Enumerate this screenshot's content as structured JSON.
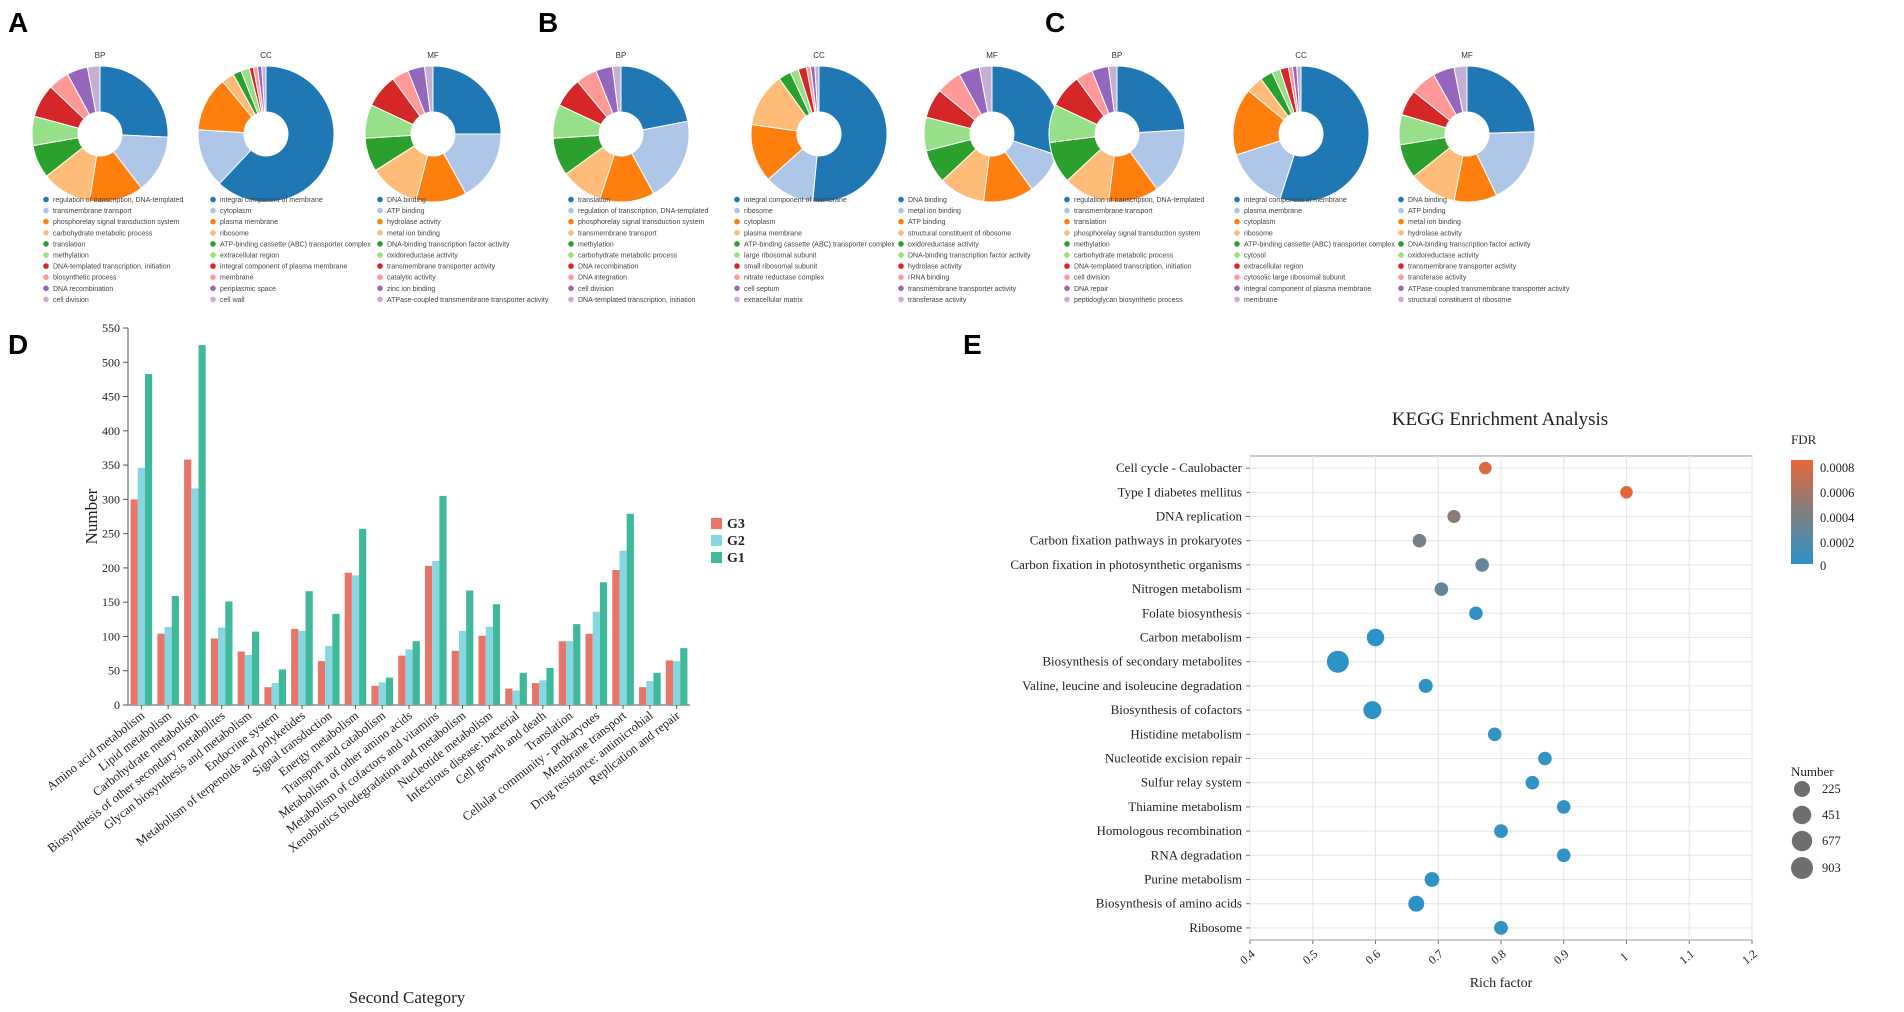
{
  "colors": {
    "go_palette": [
      "#1f77b4",
      "#aec7e8",
      "#ff7f0e",
      "#ffbb78",
      "#2ca02c",
      "#98df8a",
      "#d62728",
      "#ff9896",
      "#9467bd",
      "#c5b0d5"
    ],
    "G3": "#e8746a",
    "G2": "#85d7e2",
    "G1": "#3fb89b",
    "fdr_low": "#2b93c9",
    "fdr_mid": "#7f7f7f",
    "fdr_high": "#e8663a"
  },
  "panels": [
    {
      "letter": "A",
      "pies": [
        {
          "title": "BP",
          "values": [
            26,
            14,
            13,
            12,
            8,
            7,
            8,
            5,
            5,
            3
          ],
          "legend": [
            "regulation of transcription, DNA-templated",
            "transmembrane transport",
            "phosphorelay signal transduction system",
            "carbohydrate metabolic process",
            "translation",
            "methylation",
            "DNA-templated transcription, initiation",
            "biosynthetic process",
            "DNA recombination",
            "cell division"
          ]
        },
        {
          "title": "CC",
          "values": [
            62,
            14,
            13,
            3,
            2,
            2,
            1,
            1,
            1,
            1
          ],
          "legend": [
            "integral component of membrane",
            "cytoplasm",
            "plasma membrane",
            "ribosome",
            "ATP-binding cassette (ABC) transporter complex",
            "extracellular region",
            "integral component of plasma membrane",
            "membrane",
            "periplasmic space",
            "cell wall"
          ]
        },
        {
          "title": "MF",
          "values": [
            25,
            17,
            12,
            12,
            8,
            8,
            8,
            4,
            4,
            2
          ],
          "legend": [
            "DNA binding",
            "ATP binding",
            "hydrolase activity",
            "metal ion binding",
            "DNA-binding transcription factor activity",
            "oxidoreductase activity",
            "transmembrane transporter activity",
            "catalytic activity",
            "zinc ion binding",
            "ATPase-coupled transmembrane transporter activity"
          ]
        }
      ]
    },
    {
      "letter": "B",
      "pies": [
        {
          "title": "BP",
          "values": [
            22,
            20,
            13,
            10,
            9,
            8,
            7,
            5,
            4,
            2
          ],
          "legend": [
            "translation",
            "regulation of transcription, DNA-templated",
            "phosphorelay signal transduction system",
            "transmembrane transport",
            "methylation",
            "carbohydrate metabolic process",
            "DNA recombination",
            "DNA integration",
            "cell division",
            "DNA-templated transcription, initiation"
          ]
        },
        {
          "title": "CC",
          "values": [
            52,
            12,
            14,
            13,
            3,
            2,
            2,
            1,
            1,
            1
          ],
          "legend": [
            "integral component of membrane",
            "ribosome",
            "cytoplasm",
            "plasma membrane",
            "ATP-binding cassette (ABC) transporter complex",
            "large ribosomal subunit",
            "small ribosomal subunit",
            "nitrate reductase complex",
            "cell septum",
            "extracellular matrix"
          ]
        },
        {
          "title": "MF",
          "values": [
            30,
            10,
            12,
            11,
            8,
            8,
            7,
            6,
            5,
            3
          ],
          "legend": [
            "DNA binding",
            "metal ion binding",
            "ATP binding",
            "structural constituent of ribosome",
            "oxidoreductase activity",
            "DNA-binding transcription factor activity",
            "hydrolase activity",
            "rRNA binding",
            "transmembrane transporter activity",
            "transferase activity"
          ]
        }
      ]
    },
    {
      "letter": "C",
      "pies": [
        {
          "title": "BP",
          "values": [
            24,
            16,
            12,
            11,
            10,
            9,
            8,
            4,
            4,
            2
          ],
          "legend": [
            "regulation of transcription, DNA-templated",
            "transmembrane transport",
            "translation",
            "phosphorelay signal transduction system",
            "methylation",
            "carbohydrate metabolic process",
            "DNA-templated transcription, initiation",
            "cell division",
            "DNA repair",
            "peptidoglycan biosynthetic process"
          ]
        },
        {
          "title": "CC",
          "values": [
            55,
            15,
            16,
            4,
            3,
            2,
            2,
            1,
            1,
            1
          ],
          "legend": [
            "integral component of membrane",
            "plasma membrane",
            "cytoplasm",
            "ribosome",
            "ATP-binding cassette (ABC) transporter complex",
            "cytosol",
            "extracellular region",
            "cytosolic large ribosomal subunit",
            "integral component of plasma membrane",
            "membrane"
          ]
        },
        {
          "title": "MF",
          "values": [
            24,
            18,
            10,
            11,
            8,
            7,
            6,
            6,
            5,
            3
          ],
          "legend": [
            "DNA binding",
            "ATP binding",
            "metal ion binding",
            "hydrolase activity",
            "DNA-binding transcription factor activity",
            "oxidoreductase activity",
            "transmembrane transporter activity",
            "transferase activity",
            "ATPase-coupled transmembrane transporter activity",
            "structural constituent of ribosome"
          ]
        }
      ]
    }
  ],
  "chart_data": [
    {
      "panel": "D",
      "type": "bar",
      "xlabel": "Second Category",
      "ylabel": "Number",
      "ylim": [
        0,
        550
      ],
      "yticks": [
        0,
        50,
        100,
        150,
        200,
        250,
        300,
        350,
        400,
        450,
        500,
        550
      ],
      "categories": [
        "Amino acid metabolism",
        "Lipid metabolism",
        "Carbohydrate metabolism",
        "Biosynthesis of other secondary metabolites",
        "Glycan biosynthesis and metabolism",
        "Endocrine system",
        "Metabolism of terpenoids and polyketides",
        "Signal transduction",
        "Energy metabolism",
        "Transport and catabolism",
        "Metabolism of other amino acids",
        "Metabolism of cofactors and vitamins",
        "Xenobiotics biodegradation and metabolism",
        "Nucleotide metabolism",
        "Infectious disease: bacterial",
        "Cell growth and death",
        "Translation",
        "Cellular community - prokaryotes",
        "Membrane transport",
        "Drug resistance: antimicrobial",
        "Replication and repair"
      ],
      "series": [
        {
          "name": "G3",
          "values": [
            300,
            104,
            358,
            97,
            78,
            26,
            111,
            64,
            193,
            28,
            72,
            203,
            79,
            101,
            24,
            32,
            93,
            104,
            197,
            26,
            65
          ]
        },
        {
          "name": "G2",
          "values": [
            346,
            114,
            316,
            113,
            73,
            32,
            108,
            86,
            189,
            33,
            81,
            210,
            108,
            114,
            21,
            36,
            93,
            136,
            225,
            35,
            64
          ]
        },
        {
          "name": "G1",
          "values": [
            483,
            159,
            525,
            151,
            107,
            52,
            166,
            133,
            257,
            40,
            93,
            305,
            167,
            147,
            47,
            54,
            118,
            179,
            279,
            47,
            83
          ]
        }
      ]
    },
    {
      "panel": "E",
      "type": "scatter",
      "title": "KEGG Enrichment Analysis",
      "xlabel": "Rich factor",
      "xlim": [
        0.4,
        1.2
      ],
      "xticks": [
        "0.4",
        "0.5",
        "0.6",
        "0.7",
        "0.8",
        "0.9",
        "1",
        "1.1",
        "1.2"
      ],
      "color_legend_title": "FDR",
      "color_ticks": [
        "0.0008",
        "0.0006",
        "0.0004",
        "0.0002",
        "0"
      ],
      "fdr_max": 0.0009,
      "size_legend_title": "Number",
      "size_ticks": [
        225,
        451,
        677,
        903
      ],
      "points": [
        {
          "term": "Cell cycle - Caulobacter",
          "rich": 0.775,
          "fdr": 0.00083,
          "number": 40
        },
        {
          "term": "Type I diabetes mellitus",
          "rich": 1.0,
          "fdr": 0.00088,
          "number": 40
        },
        {
          "term": "DNA replication",
          "rich": 0.725,
          "fdr": 0.0005,
          "number": 60
        },
        {
          "term": "Carbon fixation pathways in prokaryotes",
          "rich": 0.67,
          "fdr": 0.0004,
          "number": 80
        },
        {
          "term": "Carbon fixation in photosynthetic organisms",
          "rich": 0.77,
          "fdr": 0.0003,
          "number": 80
        },
        {
          "term": "Nitrogen metabolism",
          "rich": 0.705,
          "fdr": 0.0003,
          "number": 80
        },
        {
          "term": "Folate biosynthesis",
          "rich": 0.76,
          "fdr": 3e-05,
          "number": 80
        },
        {
          "term": "Carbon metabolism",
          "rich": 0.6,
          "fdr": 1e-05,
          "number": 350
        },
        {
          "term": "Biosynthesis of secondary metabolites",
          "rich": 0.54,
          "fdr": 1e-05,
          "number": 903
        },
        {
          "term": "Valine, leucine and isoleucine degradation",
          "rich": 0.68,
          "fdr": 2e-05,
          "number": 100
        },
        {
          "term": "Biosynthesis of cofactors",
          "rich": 0.595,
          "fdr": 1e-05,
          "number": 400
        },
        {
          "term": "Histidine metabolism",
          "rich": 0.79,
          "fdr": 3e-05,
          "number": 80
        },
        {
          "term": "Nucleotide excision repair",
          "rich": 0.87,
          "fdr": 3e-05,
          "number": 80
        },
        {
          "term": "Sulfur relay system",
          "rich": 0.85,
          "fdr": 3e-05,
          "number": 80
        },
        {
          "term": "Thiamine metabolism",
          "rich": 0.9,
          "fdr": 3e-05,
          "number": 80
        },
        {
          "term": "Homologous recombination",
          "rich": 0.8,
          "fdr": 3e-05,
          "number": 90
        },
        {
          "term": "RNA degradation",
          "rich": 0.9,
          "fdr": 3e-05,
          "number": 80
        },
        {
          "term": "Purine metabolism",
          "rich": 0.69,
          "fdr": 2e-05,
          "number": 140
        },
        {
          "term": "Biosynthesis of amino acids",
          "rich": 0.665,
          "fdr": 1e-05,
          "number": 220
        },
        {
          "term": "Ribosome",
          "rich": 0.8,
          "fdr": 3e-05,
          "number": 90
        }
      ]
    }
  ]
}
